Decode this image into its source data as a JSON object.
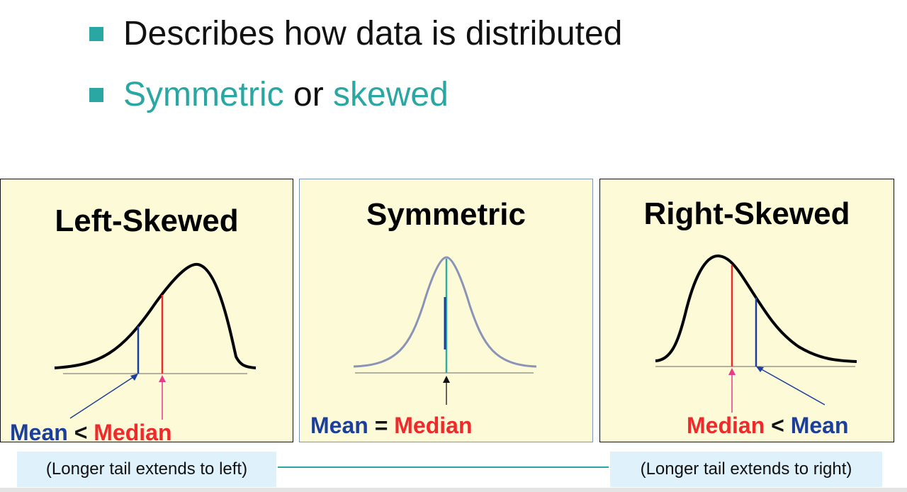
{
  "bullets": {
    "line1": "Describes how data is distributed",
    "line2_a": "Symmetric",
    "line2_b": " or ",
    "line2_c": "skewed"
  },
  "panels": {
    "left": {
      "title": "Left-Skewed",
      "mean": "Mean",
      "op": " < ",
      "median": "Median"
    },
    "middle": {
      "title": "Symmetric",
      "mean": "Mean",
      "op": " = ",
      "median": "Median"
    },
    "right": {
      "title": "Right-Skewed",
      "median": "Median",
      "op": " < ",
      "mean": "Mean"
    }
  },
  "notes": {
    "left": "(Longer tail extends to left)",
    "right": "(Longer tail extends to right)"
  },
  "colors": {
    "accent_teal": "#2aa6a3",
    "mean_blue": "#1b3f9a",
    "median_red": "#ee2a2a",
    "panel_bg": "#fdfad7",
    "note_bg": "#dff1fa"
  }
}
